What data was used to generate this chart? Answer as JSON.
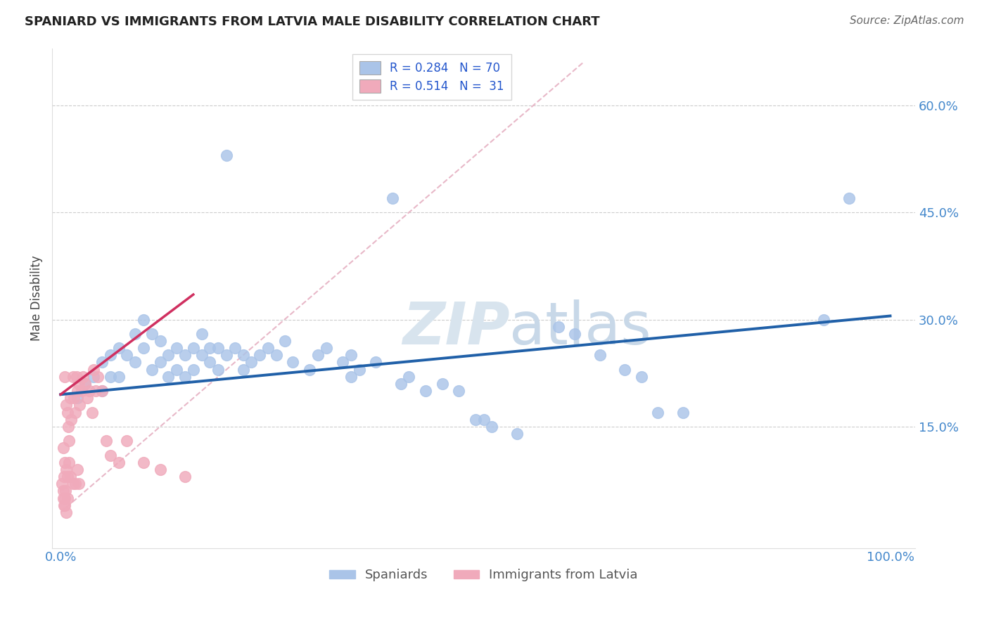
{
  "title": "SPANIARD VS IMMIGRANTS FROM LATVIA MALE DISABILITY CORRELATION CHART",
  "source": "Source: ZipAtlas.com",
  "ylabel": "Male Disability",
  "xlim": [
    -0.01,
    1.03
  ],
  "ylim": [
    -0.02,
    0.68
  ],
  "ytick_vals": [
    0.15,
    0.3,
    0.45,
    0.6
  ],
  "ytick_labels": [
    "15.0%",
    "30.0%",
    "45.0%",
    "60.0%"
  ],
  "xtick_vals": [
    0.0,
    1.0
  ],
  "xtick_labels": [
    "0.0%",
    "100.0%"
  ],
  "grid_color": "#cccccc",
  "background_color": "#ffffff",
  "spaniards_color": "#aac4e8",
  "latvia_color": "#f0aabb",
  "blue_line_color": "#2060a8",
  "pink_line_color": "#d03060",
  "dashed_line_color": "#e8b8c8",
  "watermark_color": "#d8e4ee",
  "spaniards_label": "Spaniards",
  "latvia_label": "Immigrants from Latvia",
  "sp_x": [
    0.02,
    0.03,
    0.04,
    0.05,
    0.05,
    0.06,
    0.06,
    0.07,
    0.07,
    0.08,
    0.09,
    0.09,
    0.1,
    0.1,
    0.11,
    0.11,
    0.12,
    0.12,
    0.13,
    0.13,
    0.14,
    0.14,
    0.15,
    0.15,
    0.16,
    0.16,
    0.17,
    0.17,
    0.18,
    0.18,
    0.19,
    0.19,
    0.2,
    0.21,
    0.22,
    0.22,
    0.23,
    0.24,
    0.25,
    0.26,
    0.27,
    0.28,
    0.3,
    0.31,
    0.32,
    0.34,
    0.35,
    0.36,
    0.38,
    0.4,
    0.41,
    0.44,
    0.46,
    0.48,
    0.5,
    0.51,
    0.52,
    0.55,
    0.6,
    0.62,
    0.65,
    0.68,
    0.7,
    0.72,
    0.75,
    0.35,
    0.42,
    0.2,
    0.92,
    0.95
  ],
  "sp_y": [
    0.19,
    0.21,
    0.22,
    0.24,
    0.2,
    0.25,
    0.22,
    0.26,
    0.22,
    0.25,
    0.28,
    0.24,
    0.3,
    0.26,
    0.28,
    0.23,
    0.27,
    0.24,
    0.25,
    0.22,
    0.26,
    0.23,
    0.25,
    0.22,
    0.26,
    0.23,
    0.28,
    0.25,
    0.26,
    0.24,
    0.26,
    0.23,
    0.25,
    0.26,
    0.25,
    0.23,
    0.24,
    0.25,
    0.26,
    0.25,
    0.27,
    0.24,
    0.23,
    0.25,
    0.26,
    0.24,
    0.25,
    0.23,
    0.24,
    0.47,
    0.21,
    0.2,
    0.21,
    0.2,
    0.16,
    0.16,
    0.15,
    0.14,
    0.29,
    0.28,
    0.25,
    0.23,
    0.22,
    0.17,
    0.17,
    0.22,
    0.22,
    0.53,
    0.3,
    0.47
  ],
  "lv_x": [
    0.005,
    0.007,
    0.008,
    0.009,
    0.01,
    0.012,
    0.013,
    0.015,
    0.016,
    0.018,
    0.019,
    0.02,
    0.022,
    0.023,
    0.025,
    0.027,
    0.03,
    0.032,
    0.035,
    0.038,
    0.04,
    0.042,
    0.045,
    0.05,
    0.055,
    0.06,
    0.07,
    0.08,
    0.1,
    0.12,
    0.15
  ],
  "lv_y": [
    0.22,
    0.18,
    0.17,
    0.15,
    0.13,
    0.19,
    0.16,
    0.22,
    0.19,
    0.17,
    0.22,
    0.2,
    0.21,
    0.18,
    0.2,
    0.22,
    0.21,
    0.19,
    0.2,
    0.17,
    0.23,
    0.2,
    0.22,
    0.2,
    0.13,
    0.11,
    0.1,
    0.13,
    0.1,
    0.09,
    0.08
  ],
  "lv_x_extra": [
    0.003,
    0.005,
    0.007,
    0.008,
    0.01,
    0.012,
    0.015,
    0.018,
    0.02,
    0.022,
    0.003,
    0.005,
    0.007,
    0.008,
    0.006,
    0.004,
    0.003,
    0.002,
    0.004,
    0.005
  ],
  "lv_y_extra": [
    0.12,
    0.1,
    0.09,
    0.08,
    0.1,
    0.08,
    0.07,
    0.07,
    0.09,
    0.07,
    0.05,
    0.04,
    0.03,
    0.05,
    0.06,
    0.04,
    0.06,
    0.07,
    0.08,
    0.05
  ],
  "blue_line_x": [
    0.0,
    1.0
  ],
  "blue_line_y": [
    0.195,
    0.305
  ],
  "pink_line_x": [
    0.0,
    0.16
  ],
  "pink_line_y": [
    0.195,
    0.335
  ],
  "dash_line_x": [
    0.0,
    0.63
  ],
  "dash_line_y": [
    0.03,
    0.66
  ]
}
